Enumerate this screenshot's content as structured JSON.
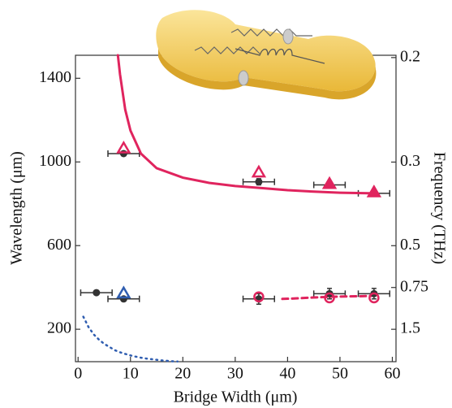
{
  "chart_data": {
    "type": "scatter",
    "xlabel": "Bridge Width (μm)",
    "ylabel": "Wavelength (μm)",
    "y2label": "Frequency (THz)",
    "xlim": [
      -0.5,
      60.7
    ],
    "xticks": [
      0,
      10,
      20,
      30,
      40,
      50,
      60
    ],
    "ylim": [
      45,
      1510
    ],
    "yticks": [
      200,
      600,
      1000,
      1400
    ],
    "y2ticks": [
      0.2,
      0.3,
      0.5,
      0.75,
      1.5
    ],
    "series": [
      {
        "kind": "points",
        "marker": "dot",
        "color": "#333333",
        "x": [
          3.5,
          8.7,
          8.7,
          34.5,
          34.5,
          48,
          48,
          56.5,
          56.5
        ],
        "values": [
          375,
          1040,
          345,
          905,
          345,
          890,
          370,
          850,
          370
        ],
        "xerr": [
          3,
          3,
          3,
          3,
          3,
          3,
          3,
          3,
          3
        ],
        "yerr": [
          10,
          10,
          10,
          15,
          25,
          15,
          25,
          15,
          25
        ]
      },
      {
        "kind": "points",
        "marker": "triangle-open",
        "color": "#e0245e",
        "x": [
          8.7,
          34.5
        ],
        "values": [
          1065,
          950
        ]
      },
      {
        "kind": "points",
        "marker": "triangle",
        "color": "#e0245e",
        "x": [
          48,
          56.5
        ],
        "values": [
          895,
          855
        ]
      },
      {
        "kind": "points",
        "marker": "triangle-open",
        "color": "#2f5db0",
        "x": [
          8.7
        ],
        "values": [
          372
        ]
      },
      {
        "kind": "points",
        "marker": "circle-open",
        "color": "#e0245e",
        "x": [
          34.5,
          48,
          56.5
        ],
        "values": [
          355,
          350,
          350
        ]
      },
      {
        "kind": "line",
        "style": "solid",
        "color": "#e0245e",
        "x": [
          7.6,
          8,
          9,
          10,
          12,
          15,
          20,
          25,
          30,
          35,
          40,
          45,
          50,
          56.5
        ],
        "values": [
          1510,
          1420,
          1250,
          1150,
          1040,
          970,
          925,
          900,
          885,
          875,
          865,
          858,
          853,
          850
        ]
      },
      {
        "kind": "line",
        "style": "dashed",
        "color": "#e0245e",
        "x": [
          39,
          42,
          45,
          48,
          51,
          54,
          56.5
        ],
        "values": [
          345,
          348,
          352,
          355,
          357,
          358,
          360
        ]
      },
      {
        "kind": "line",
        "style": "dotted",
        "color": "#2f5db0",
        "x": [
          1,
          2,
          3,
          4,
          5,
          6,
          7,
          8,
          9,
          10,
          11,
          12,
          13,
          14,
          15,
          16,
          17,
          18,
          19
        ],
        "values": [
          260,
          210,
          175,
          150,
          130,
          115,
          100,
          90,
          82,
          75,
          69,
          64,
          60,
          57,
          54,
          51,
          49,
          47,
          46
        ]
      }
    ]
  }
}
